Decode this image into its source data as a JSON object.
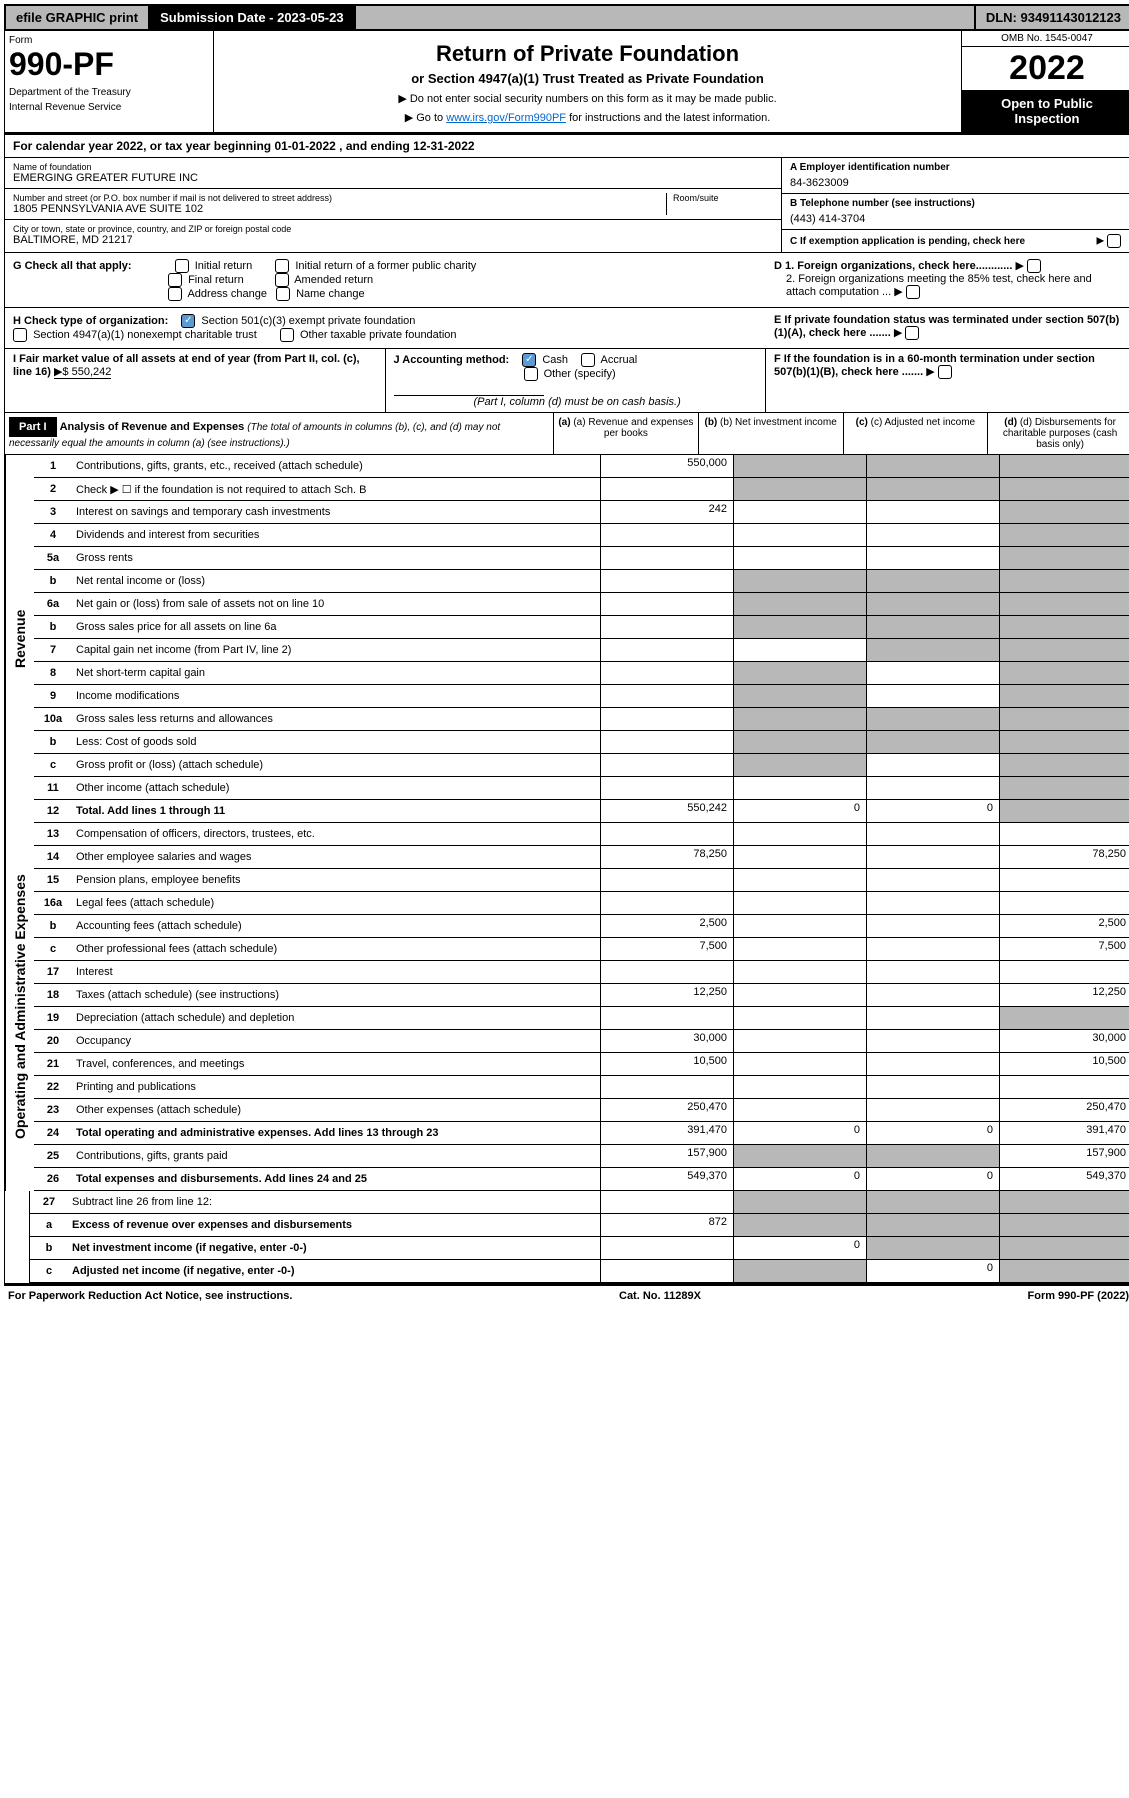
{
  "top": {
    "efile": "efile GRAPHIC print",
    "submission": "Submission Date - 2023-05-23",
    "dln": "DLN: 93491143012123"
  },
  "header": {
    "form_label": "Form",
    "form_num": "990-PF",
    "dept1": "Department of the Treasury",
    "dept2": "Internal Revenue Service",
    "title": "Return of Private Foundation",
    "subtitle": "or Section 4947(a)(1) Trust Treated as Private Foundation",
    "bullet1": "▶ Do not enter social security numbers on this form as it may be made public.",
    "bullet2_pre": "▶ Go to ",
    "bullet2_link": "www.irs.gov/Form990PF",
    "bullet2_post": " for instructions and the latest information.",
    "omb": "OMB No. 1545-0047",
    "year": "2022",
    "inspect": "Open to Public Inspection"
  },
  "calyear": "For calendar year 2022, or tax year beginning 01-01-2022                      , and ending 12-31-2022",
  "info": {
    "name_label": "Name of foundation",
    "name": "EMERGING GREATER FUTURE INC",
    "addr_label": "Number and street (or P.O. box number if mail is not delivered to street address)",
    "addr": "1805 PENNSYLVANIA AVE SUITE 102",
    "room_label": "Room/suite",
    "city_label": "City or town, state or province, country, and ZIP or foreign postal code",
    "city": "BALTIMORE, MD  21217",
    "a_label": "A Employer identification number",
    "a_val": "84-3623009",
    "b_label": "B Telephone number (see instructions)",
    "b_val": "(443) 414-3704",
    "c_label": "C If exemption application is pending, check here"
  },
  "g": {
    "label": "G Check all that apply:",
    "initial": "Initial return",
    "final": "Final return",
    "address": "Address change",
    "initial_former": "Initial return of a former public charity",
    "amended": "Amended return",
    "name_change": "Name change"
  },
  "h": {
    "label": "H Check type of organization:",
    "sec501": "Section 501(c)(3) exempt private foundation",
    "sec4947": "Section 4947(a)(1) nonexempt charitable trust",
    "other_tax": "Other taxable private foundation"
  },
  "i": {
    "label": "I Fair market value of all assets at end of year (from Part II, col. (c), line 16)",
    "val": "▶$  550,242"
  },
  "j": {
    "label": "J Accounting method:",
    "cash": "Cash",
    "accrual": "Accrual",
    "other": "Other (specify)",
    "note": "(Part I, column (d) must be on cash basis.)"
  },
  "d": {
    "d1": "D 1. Foreign organizations, check here............",
    "d2": "2. Foreign organizations meeting the 85% test, check here and attach computation ..."
  },
  "e": "E  If private foundation status was terminated under section 507(b)(1)(A), check here .......",
  "f": "F  If the foundation is in a 60-month termination under section 507(b)(1)(B), check here .......",
  "part1": {
    "label": "Part I",
    "title": "Analysis of Revenue and Expenses",
    "note": " (The total of amounts in columns (b), (c), and (d) may not necessarily equal the amounts in column (a) (see instructions).)",
    "col_a": "(a) Revenue and expenses per books",
    "col_b": "(b) Net investment income",
    "col_c": "(c) Adjusted net income",
    "col_d": "(d) Disbursements for charitable purposes (cash basis only)"
  },
  "side_revenue": "Revenue",
  "side_expenses": "Operating and Administrative Expenses",
  "rows": {
    "r1": {
      "n": "1",
      "l": "Contributions, gifts, grants, etc., received (attach schedule)",
      "a": "550,000"
    },
    "r2": {
      "n": "2",
      "l": "Check ▶ ☐ if the foundation is not required to attach Sch. B"
    },
    "r3": {
      "n": "3",
      "l": "Interest on savings and temporary cash investments",
      "a": "242"
    },
    "r4": {
      "n": "4",
      "l": "Dividends and interest from securities"
    },
    "r5a": {
      "n": "5a",
      "l": "Gross rents"
    },
    "r5b": {
      "n": "b",
      "l": "Net rental income or (loss)"
    },
    "r6a": {
      "n": "6a",
      "l": "Net gain or (loss) from sale of assets not on line 10"
    },
    "r6b": {
      "n": "b",
      "l": "Gross sales price for all assets on line 6a"
    },
    "r7": {
      "n": "7",
      "l": "Capital gain net income (from Part IV, line 2)"
    },
    "r8": {
      "n": "8",
      "l": "Net short-term capital gain"
    },
    "r9": {
      "n": "9",
      "l": "Income modifications"
    },
    "r10a": {
      "n": "10a",
      "l": "Gross sales less returns and allowances"
    },
    "r10b": {
      "n": "b",
      "l": "Less: Cost of goods sold"
    },
    "r10c": {
      "n": "c",
      "l": "Gross profit or (loss) (attach schedule)"
    },
    "r11": {
      "n": "11",
      "l": "Other income (attach schedule)"
    },
    "r12": {
      "n": "12",
      "l": "Total. Add lines 1 through 11",
      "a": "550,242",
      "b": "0",
      "c": "0"
    },
    "r13": {
      "n": "13",
      "l": "Compensation of officers, directors, trustees, etc."
    },
    "r14": {
      "n": "14",
      "l": "Other employee salaries and wages",
      "a": "78,250",
      "d": "78,250"
    },
    "r15": {
      "n": "15",
      "l": "Pension plans, employee benefits"
    },
    "r16a": {
      "n": "16a",
      "l": "Legal fees (attach schedule)"
    },
    "r16b": {
      "n": "b",
      "l": "Accounting fees (attach schedule)",
      "a": "2,500",
      "d": "2,500"
    },
    "r16c": {
      "n": "c",
      "l": "Other professional fees (attach schedule)",
      "a": "7,500",
      "d": "7,500"
    },
    "r17": {
      "n": "17",
      "l": "Interest"
    },
    "r18": {
      "n": "18",
      "l": "Taxes (attach schedule) (see instructions)",
      "a": "12,250",
      "d": "12,250"
    },
    "r19": {
      "n": "19",
      "l": "Depreciation (attach schedule) and depletion"
    },
    "r20": {
      "n": "20",
      "l": "Occupancy",
      "a": "30,000",
      "d": "30,000"
    },
    "r21": {
      "n": "21",
      "l": "Travel, conferences, and meetings",
      "a": "10,500",
      "d": "10,500"
    },
    "r22": {
      "n": "22",
      "l": "Printing and publications"
    },
    "r23": {
      "n": "23",
      "l": "Other expenses (attach schedule)",
      "a": "250,470",
      "d": "250,470"
    },
    "r24": {
      "n": "24",
      "l": "Total operating and administrative expenses. Add lines 13 through 23",
      "a": "391,470",
      "b": "0",
      "c": "0",
      "d": "391,470"
    },
    "r25": {
      "n": "25",
      "l": "Contributions, gifts, grants paid",
      "a": "157,900",
      "d": "157,900"
    },
    "r26": {
      "n": "26",
      "l": "Total expenses and disbursements. Add lines 24 and 25",
      "a": "549,370",
      "b": "0",
      "c": "0",
      "d": "549,370"
    },
    "r27": {
      "n": "27",
      "l": "Subtract line 26 from line 12:"
    },
    "r27a": {
      "n": "a",
      "l": "Excess of revenue over expenses and disbursements",
      "a": "872"
    },
    "r27b": {
      "n": "b",
      "l": "Net investment income (if negative, enter -0-)",
      "b": "0"
    },
    "r27c": {
      "n": "c",
      "l": "Adjusted net income (if negative, enter -0-)",
      "c": "0"
    }
  },
  "footer": {
    "left": "For Paperwork Reduction Act Notice, see instructions.",
    "mid": "Cat. No. 11289X",
    "right": "Form 990-PF (2022)"
  }
}
